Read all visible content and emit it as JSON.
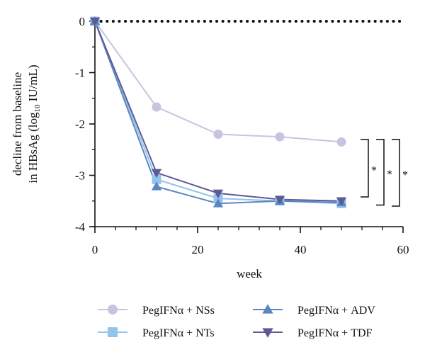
{
  "chart_data": {
    "type": "line",
    "xlabel": "week",
    "ylabel_line1": "decline from baseline",
    "ylabel_line2_pre": "in HBsAg (log",
    "ylabel_line2_sub": "10",
    "ylabel_line2_post": " IU/mL)",
    "xlim": [
      0,
      60
    ],
    "ylim": [
      -4,
      0
    ],
    "xticks": [
      0,
      20,
      40,
      60
    ],
    "yticks": [
      0,
      -1,
      -2,
      -3,
      -4
    ],
    "reference_line_y": 0,
    "series": [
      {
        "name": "PegIFNα + NSs",
        "color": "#c5c5e0",
        "marker": "circle",
        "x": [
          0,
          12,
          24,
          36,
          48
        ],
        "y": [
          0,
          -1.67,
          -2.2,
          -2.25,
          -2.35
        ]
      },
      {
        "name": "PegIFNα + NTs",
        "color": "#92c4ec",
        "marker": "square",
        "x": [
          0,
          12,
          24,
          36,
          48
        ],
        "y": [
          0,
          -3.08,
          -3.45,
          -3.5,
          -3.55
        ]
      },
      {
        "name": "PegIFNα + ADV",
        "color": "#5b87c0",
        "marker": "triangle-up",
        "x": [
          0,
          12,
          24,
          36,
          48
        ],
        "y": [
          0,
          -3.22,
          -3.55,
          -3.5,
          -3.53
        ]
      },
      {
        "name": "PegIFNα + TDF",
        "color": "#5e5a94",
        "marker": "triangle-down",
        "x": [
          0,
          12,
          24,
          36,
          48
        ],
        "y": [
          0,
          -2.95,
          -3.35,
          -3.47,
          -3.5
        ]
      }
    ],
    "significance": [
      {
        "label": "*",
        "y_top": -2.3,
        "y_bottom": -3.42,
        "level": 0
      },
      {
        "label": "*",
        "y_top": -2.3,
        "y_bottom": -3.58,
        "level": 1
      },
      {
        "label": "*",
        "y_top": -2.3,
        "y_bottom": -3.6,
        "level": 2
      }
    ]
  }
}
